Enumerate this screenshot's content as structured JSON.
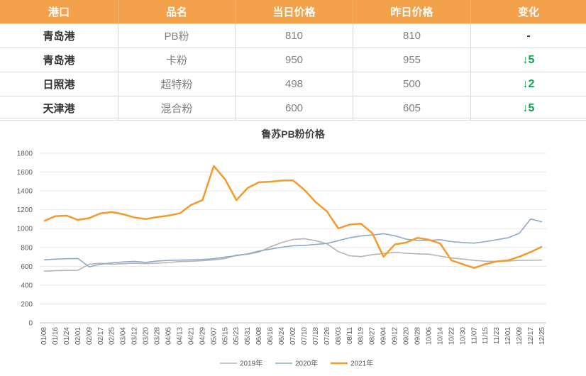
{
  "table": {
    "headers": [
      "港口",
      "品名",
      "当日价格",
      "昨日价格",
      "变化"
    ],
    "rows": [
      {
        "port": "青岛港",
        "product": "PB粉",
        "today": "810",
        "yesterday": "810",
        "change": "-",
        "direction": "flat"
      },
      {
        "port": "青岛港",
        "product": "卡粉",
        "today": "950",
        "yesterday": "955",
        "change": "↓5",
        "direction": "down"
      },
      {
        "port": "日照港",
        "product": "超特粉",
        "today": "498",
        "yesterday": "500",
        "change": "↓2",
        "direction": "down"
      },
      {
        "port": "天津港",
        "product": "混合粉",
        "today": "600",
        "yesterday": "605",
        "change": "↓5",
        "direction": "down"
      }
    ],
    "colors": {
      "header_bg": "#f3a14b",
      "down": "#12a14b"
    }
  },
  "chart_data": {
    "type": "line",
    "title": "鲁苏PB粉价格",
    "ylim": [
      0,
      1800
    ],
    "yticks": [
      0,
      200,
      400,
      600,
      800,
      1000,
      1200,
      1400,
      1600,
      1800
    ],
    "grid": "horizontal",
    "legend_position": "bottom",
    "categories": [
      "01/08",
      "01/16",
      "01/24",
      "02/01",
      "02/09",
      "02/17",
      "02/25",
      "03/04",
      "03/12",
      "03/20",
      "03/28",
      "04/05",
      "04/13",
      "04/21",
      "04/29",
      "05/07",
      "05/15",
      "05/23",
      "05/31",
      "06/08",
      "06/16",
      "06/24",
      "07/02",
      "07/10",
      "07/18",
      "07/26",
      "08/03",
      "08/11",
      "08/19",
      "08/27",
      "09/04",
      "09/12",
      "09/20",
      "09/28",
      "10/06",
      "10/14",
      "10/22",
      "10/30",
      "11/07",
      "11/15",
      "11/23",
      "12/01",
      "12/09",
      "12/17",
      "12/25"
    ],
    "series": [
      {
        "name": "2019年",
        "color": "#b4b4b4",
        "values": [
          548,
          553,
          556,
          558,
          622,
          632,
          622,
          627,
          632,
          628,
          632,
          640,
          650,
          653,
          659,
          668,
          682,
          718,
          728,
          752,
          806,
          852,
          885,
          892,
          872,
          838,
          756,
          712,
          703,
          722,
          736,
          748,
          738,
          732,
          728,
          708,
          688,
          676,
          662,
          654,
          652,
          656,
          662,
          664,
          666
        ]
      },
      {
        "name": "2020年",
        "color": "#8ea9c9",
        "values": [
          668,
          676,
          680,
          682,
          594,
          622,
          636,
          646,
          652,
          642,
          656,
          662,
          666,
          668,
          672,
          680,
          698,
          712,
          732,
          762,
          782,
          802,
          818,
          822,
          832,
          842,
          872,
          902,
          922,
          932,
          946,
          924,
          888,
          874,
          876,
          882,
          862,
          852,
          846,
          862,
          882,
          902,
          952,
          1102,
          1072
        ]
      },
      {
        "name": "2021年",
        "color": "#f39a2b",
        "values": [
          1080,
          1132,
          1138,
          1092,
          1112,
          1162,
          1176,
          1152,
          1118,
          1102,
          1122,
          1138,
          1162,
          1252,
          1302,
          1665,
          1522,
          1302,
          1432,
          1492,
          1498,
          1510,
          1512,
          1412,
          1282,
          1182,
          1002,
          1042,
          1052,
          952,
          702,
          832,
          852,
          902,
          882,
          842,
          662,
          622,
          582,
          622,
          652,
          662,
          702,
          752,
          808
        ]
      }
    ]
  }
}
